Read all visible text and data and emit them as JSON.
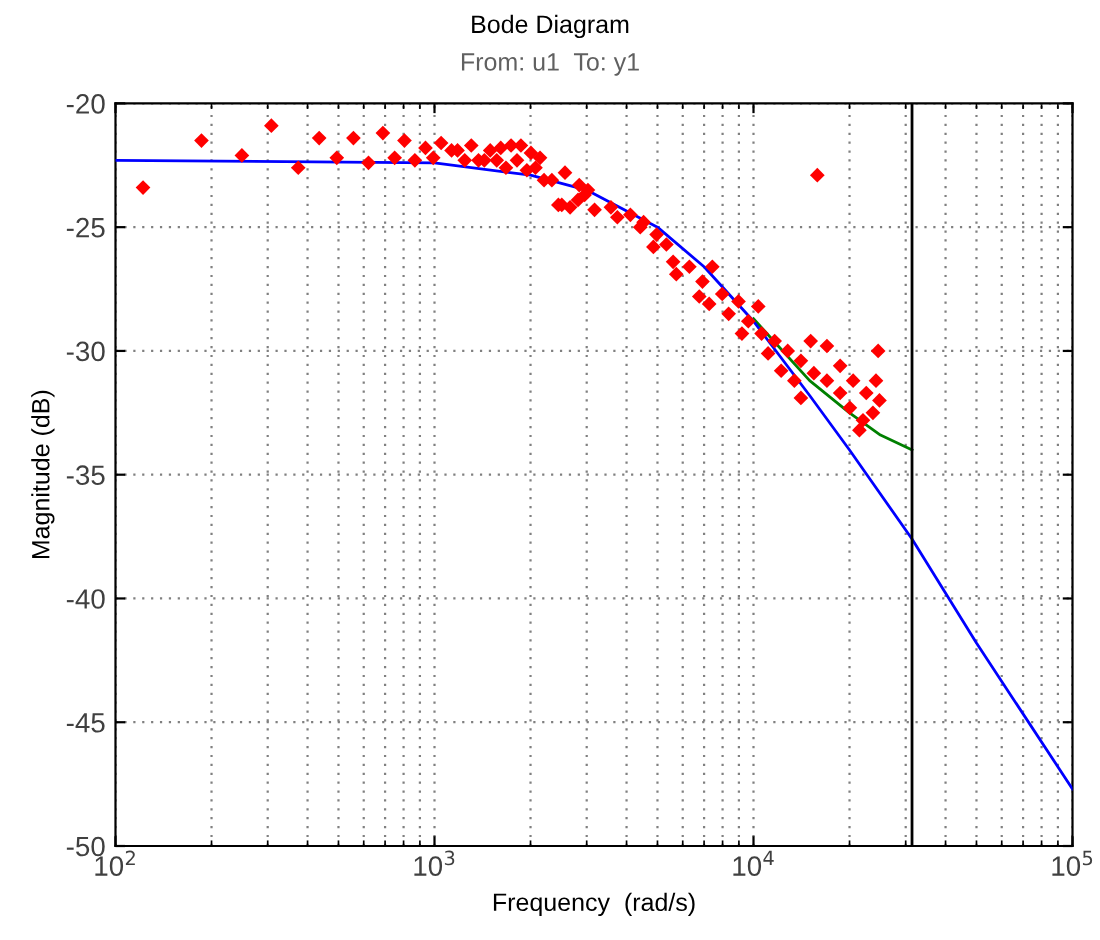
{
  "chart_data": {
    "type": "line",
    "title": "Bode Diagram",
    "subtitle": "From: u1  To: y1",
    "xlabel": "Frequency  (rad/s)",
    "ylabel": "Magnitude (dB)",
    "log": "x",
    "grid": true,
    "xlim": [
      100,
      100000
    ],
    "ylim": [
      -50,
      -20
    ],
    "xticks": [
      {
        "value": 100,
        "label": "10$^{2}$"
      },
      {
        "value": 1000,
        "label": "10$^{3}$"
      },
      {
        "value": 10000,
        "label": "10$^{4}$"
      },
      {
        "value": 100000,
        "label": "10$^{5}$"
      }
    ],
    "yticks": [
      -50,
      -45,
      -40,
      -35,
      -30,
      -25,
      -20
    ],
    "ref_lines": [
      {
        "axis": "x",
        "value": 31400,
        "color": "#000000"
      }
    ],
    "series": [
      {
        "color": "#008000",
        "x": [
          10000,
          15000,
          20000,
          25000,
          31400
        ],
        "values": [
          -28.7,
          -31.2,
          -32.5,
          -33.4,
          -34.0
        ]
      },
      {
        "color": "#0000ff",
        "x": [
          100,
          1000,
          2000,
          3000,
          5000,
          7000,
          10000,
          15000,
          20000,
          31400,
          50000,
          100000
        ],
        "values": [
          -22.3,
          -22.4,
          -22.9,
          -23.5,
          -25.0,
          -26.6,
          -28.8,
          -31.8,
          -34.0,
          -37.6,
          -41.8,
          -47.7
        ]
      },
      {
        "type": "scatter",
        "color": "#ff0000",
        "marker": "diamond",
        "x": [
          122,
          186,
          249,
          308,
          374,
          435,
          494,
          557,
          621,
          689,
          750,
          805,
          868,
          937,
          991,
          1049,
          1131,
          1181,
          1244,
          1304,
          1374,
          1433,
          1495,
          1567,
          1613,
          1675,
          1738,
          1814,
          1866,
          1948,
          2006,
          2073,
          2142,
          2205,
          2333,
          2445,
          2565,
          2661,
          2843,
          2955,
          2506,
          2818,
          3175,
          3027,
          3573,
          3743,
          4112,
          4416,
          4524,
          4969,
          4855,
          5333,
          5598,
          5728,
          6295,
          6919,
          7430,
          6761,
          7262,
          7980,
          8358,
          8974,
          9632,
          9200,
          10350,
          10600,
          11650,
          11110,
          12210,
          12800,
          14080,
          13430,
          15110,
          15460,
          16990,
          16990,
          18690,
          18690,
          20530,
          20050,
          22570,
          22040,
          24210,
          24820,
          23680,
          24590,
          14080,
          21480,
          15850
        ],
        "values": [
          -23.4,
          -21.5,
          -22.1,
          -20.9,
          -22.6,
          -21.4,
          -22.2,
          -21.4,
          -22.4,
          -21.2,
          -22.2,
          -21.5,
          -22.3,
          -21.8,
          -22.2,
          -21.6,
          -21.9,
          -21.9,
          -22.3,
          -21.7,
          -22.3,
          -22.3,
          -21.9,
          -22.3,
          -21.8,
          -22.6,
          -21.7,
          -22.3,
          -21.7,
          -22.7,
          -22.0,
          -22.6,
          -22.2,
          -23.1,
          -23.1,
          -24.1,
          -22.8,
          -24.2,
          -23.3,
          -23.7,
          -24.1,
          -23.9,
          -24.3,
          -23.5,
          -24.2,
          -24.6,
          -24.5,
          -25.0,
          -24.8,
          -25.3,
          -25.8,
          -25.7,
          -26.4,
          -26.9,
          -26.6,
          -27.2,
          -26.6,
          -27.8,
          -28.1,
          -27.7,
          -28.5,
          -28.0,
          -28.8,
          -29.3,
          -28.2,
          -29.3,
          -29.6,
          -30.1,
          -30.8,
          -30.0,
          -30.4,
          -31.2,
          -29.6,
          -30.9,
          -29.8,
          -31.2,
          -30.6,
          -31.7,
          -31.2,
          -32.3,
          -31.7,
          -32.8,
          -31.2,
          -32.0,
          -32.5,
          -30.0,
          -31.9,
          -33.2,
          -22.9
        ]
      }
    ]
  }
}
